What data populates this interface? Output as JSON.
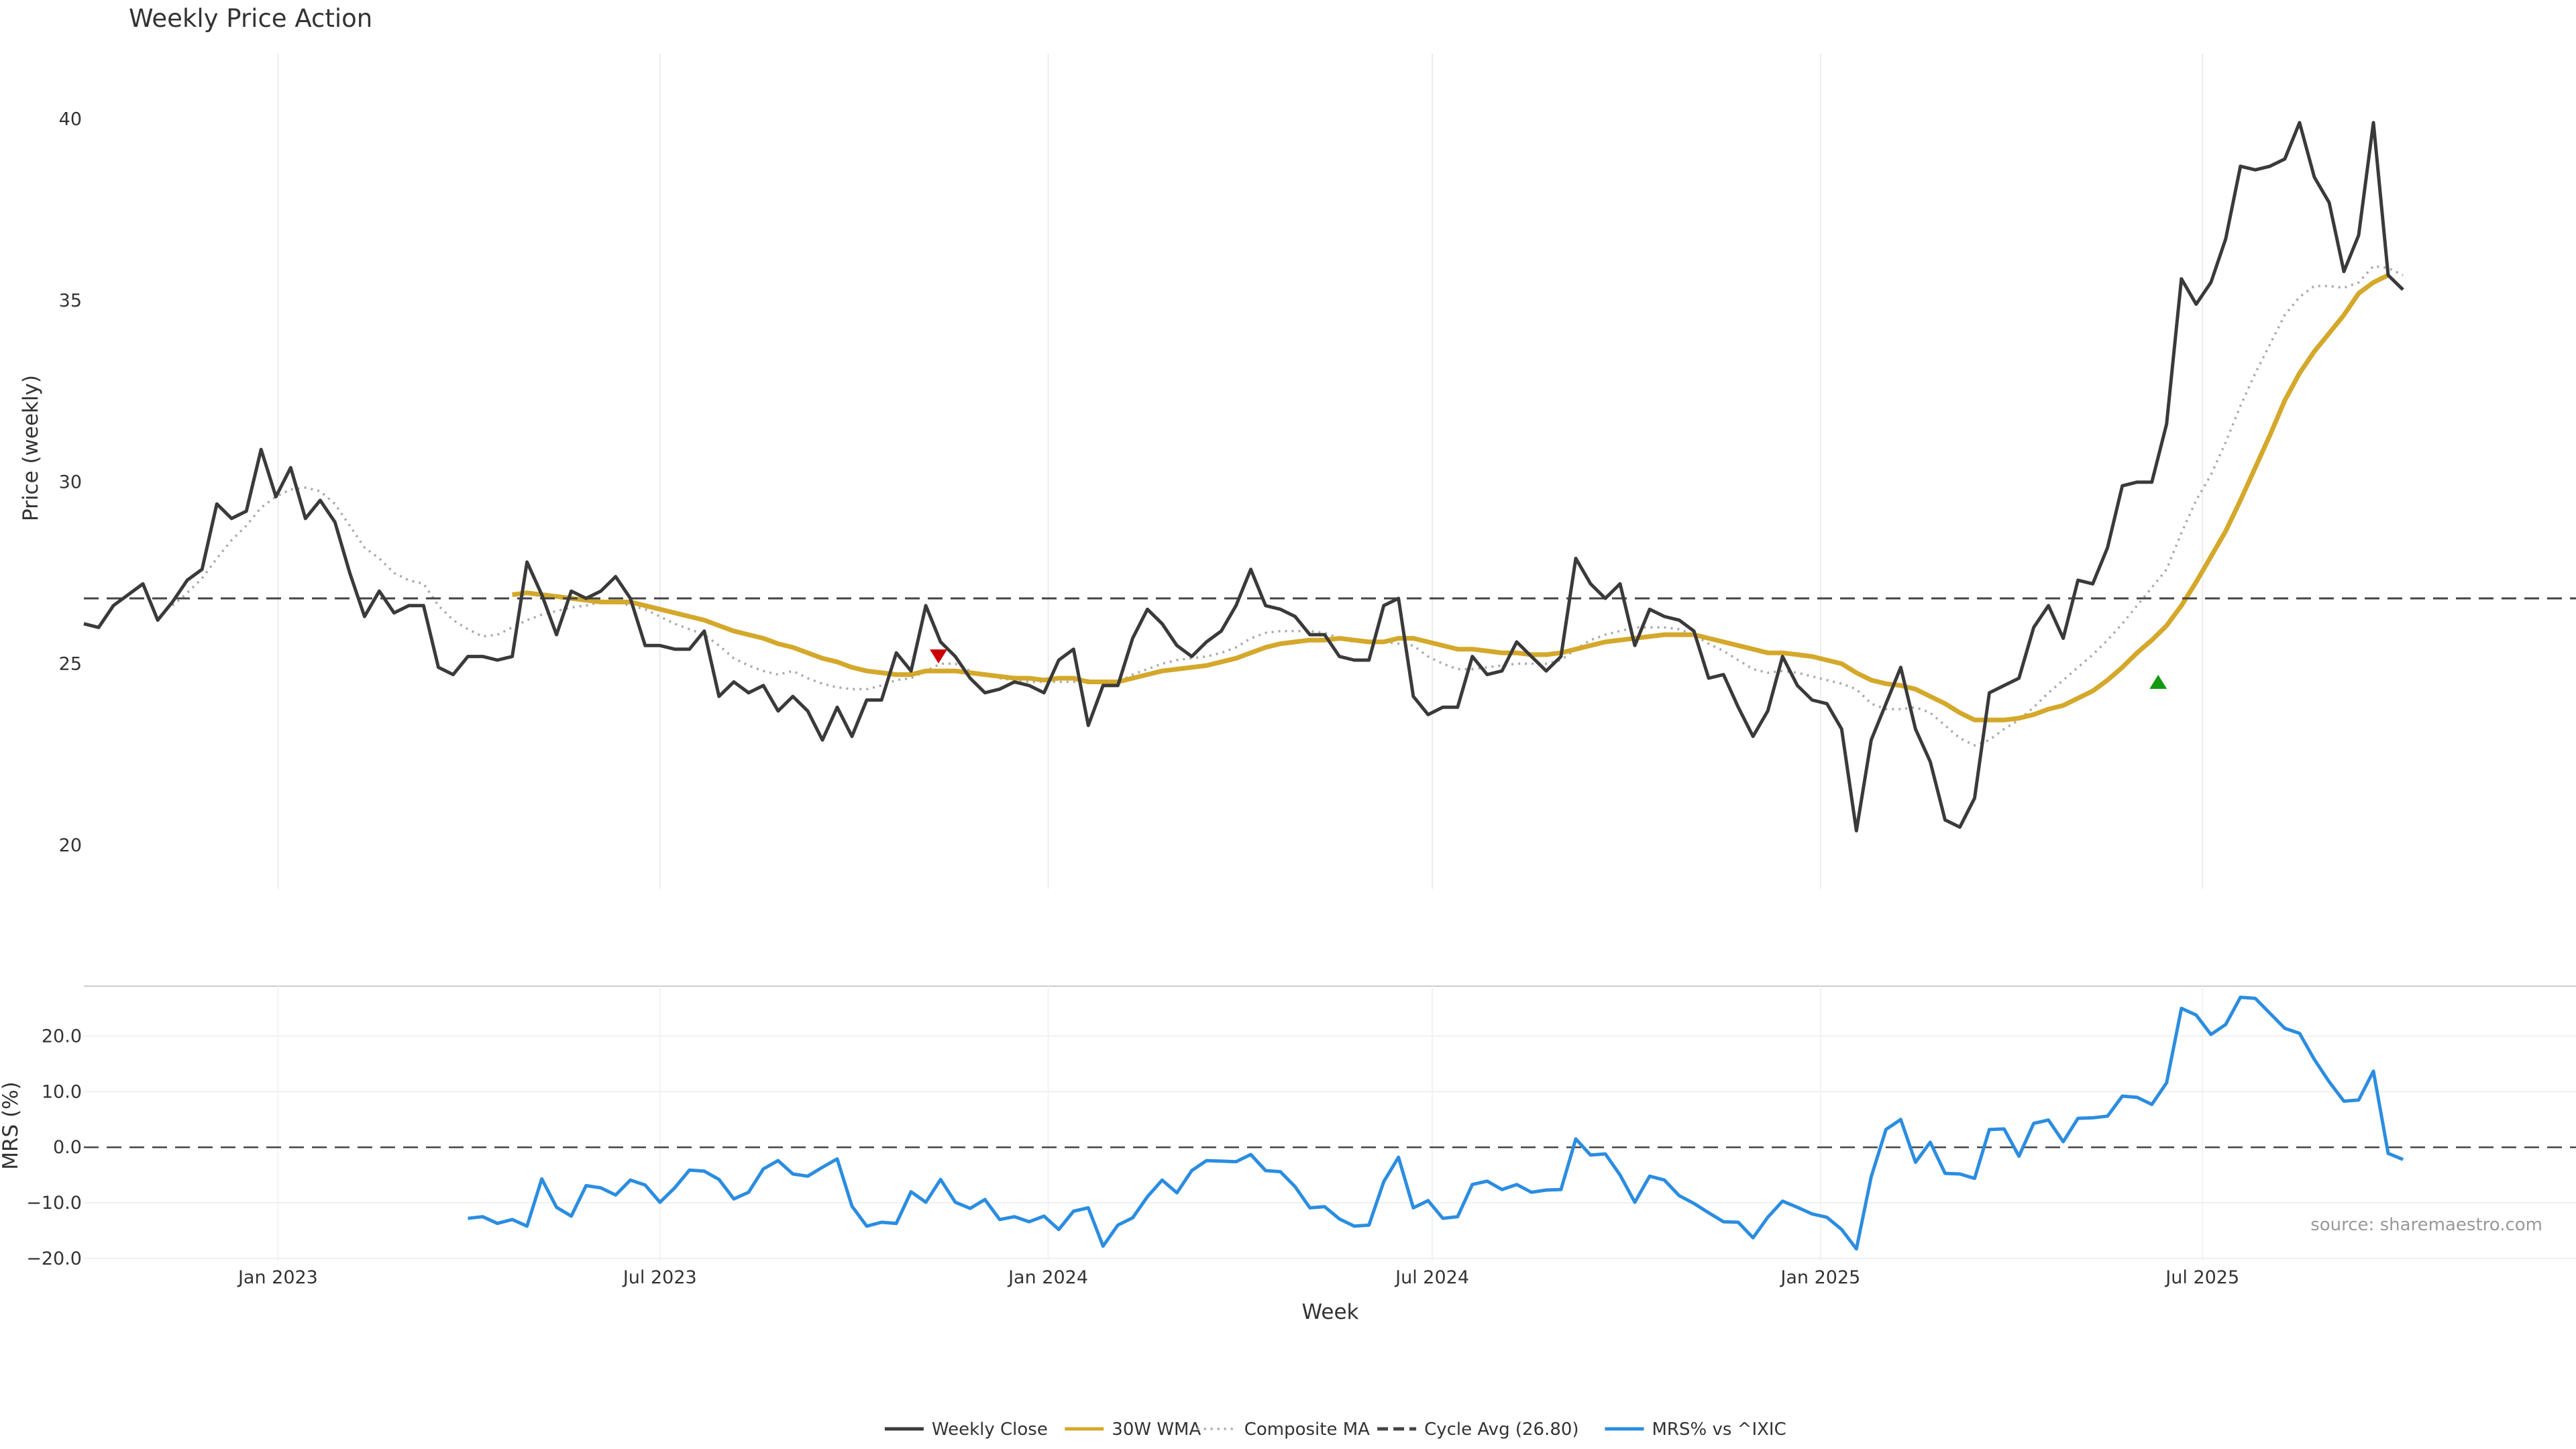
{
  "chart_data": [
    {
      "type": "line",
      "panel": "price",
      "title": "Weekly Price Action",
      "ylabel": "Price (weekly)",
      "ylim": [
        18.8,
        41.8
      ],
      "yticks": [
        "20",
        "25",
        "30",
        "35",
        "40"
      ],
      "ytick_values": [
        20,
        25,
        30,
        35,
        40
      ],
      "x_start": "2022-10-01",
      "x_step_weeks": 1,
      "xlim": [
        "2022-10-01",
        "2025-12-25"
      ],
      "grid": true,
      "series": [
        {
          "name": "Weekly Close",
          "color": "#3a3a3a",
          "style": "solid",
          "values": [
            26.1,
            26.0,
            26.6,
            26.9,
            27.2,
            26.2,
            26.7,
            27.3,
            27.6,
            29.4,
            29.0,
            29.2,
            30.9,
            29.6,
            30.4,
            29.0,
            29.5,
            28.9,
            27.5,
            26.3,
            27.0,
            26.4,
            26.6,
            26.6,
            24.9,
            24.7,
            25.2,
            25.2,
            25.1,
            25.2,
            27.8,
            26.9,
            25.8,
            27.0,
            26.8,
            27.0,
            27.4,
            26.8,
            25.5,
            25.5,
            25.4,
            25.4,
            25.9,
            24.1,
            24.5,
            24.2,
            24.4,
            23.7,
            24.1,
            23.7,
            22.9,
            23.8,
            23.0,
            24.0,
            24.0,
            25.3,
            24.8,
            26.6,
            25.6,
            25.2,
            24.6,
            24.2,
            24.3,
            24.5,
            24.4,
            24.2,
            25.1,
            25.4,
            23.3,
            24.4,
            24.4,
            25.7,
            26.5,
            26.1,
            25.5,
            25.2,
            25.6,
            25.9,
            26.6,
            27.6,
            26.6,
            26.5,
            26.3,
            25.8,
            25.8,
            25.2,
            25.1,
            25.1,
            26.6,
            26.8,
            24.1,
            23.6,
            23.8,
            23.8,
            25.2,
            24.7,
            24.8,
            25.6,
            25.2,
            24.8,
            25.2,
            27.9,
            27.2,
            26.8,
            27.2,
            25.5,
            26.5,
            26.3,
            26.2,
            25.9,
            24.6,
            24.7,
            23.8,
            23.0,
            23.7,
            25.2,
            24.4,
            24.0,
            23.9,
            23.2,
            20.4,
            22.9,
            23.9,
            24.9,
            23.2,
            22.3,
            20.7,
            20.5,
            21.3,
            24.2,
            24.4,
            24.6,
            26.0,
            26.6,
            25.7,
            27.3,
            27.2,
            28.2,
            29.9,
            30.0,
            30.0,
            31.6,
            35.6,
            34.9,
            35.5,
            36.7,
            38.7,
            38.6,
            38.7,
            38.9,
            39.9,
            38.4,
            37.7,
            35.8,
            36.8,
            39.9,
            35.7,
            35.3
          ]
        },
        {
          "name": "30W WMA",
          "color": "#d4a82b",
          "style": "solid",
          "values": [
            null,
            null,
            null,
            null,
            null,
            null,
            null,
            null,
            null,
            null,
            null,
            null,
            null,
            null,
            null,
            null,
            null,
            null,
            null,
            null,
            null,
            null,
            null,
            null,
            null,
            null,
            null,
            null,
            null,
            26.9,
            26.95,
            26.9,
            26.85,
            26.8,
            26.75,
            26.7,
            26.7,
            26.7,
            26.6,
            26.5,
            26.4,
            26.3,
            26.2,
            26.05,
            25.9,
            25.8,
            25.7,
            25.55,
            25.45,
            25.3,
            25.15,
            25.05,
            24.9,
            24.8,
            24.75,
            24.7,
            24.7,
            24.8,
            24.8,
            24.8,
            24.75,
            24.7,
            24.65,
            24.6,
            24.6,
            24.55,
            24.6,
            24.6,
            24.5,
            24.5,
            24.5,
            24.6,
            24.7,
            24.8,
            24.85,
            24.9,
            24.95,
            25.05,
            25.15,
            25.3,
            25.45,
            25.55,
            25.6,
            25.65,
            25.65,
            25.7,
            25.65,
            25.6,
            25.6,
            25.7,
            25.7,
            25.6,
            25.5,
            25.4,
            25.4,
            25.35,
            25.3,
            25.3,
            25.25,
            25.25,
            25.3,
            25.4,
            25.5,
            25.6,
            25.65,
            25.7,
            25.75,
            25.8,
            25.8,
            25.8,
            25.7,
            25.6,
            25.5,
            25.4,
            25.3,
            25.3,
            25.25,
            25.2,
            25.1,
            25.0,
            24.75,
            24.55,
            24.45,
            24.4,
            24.3,
            24.1,
            23.9,
            23.65,
            23.45,
            23.45,
            23.45,
            23.5,
            23.6,
            23.75,
            23.85,
            24.05,
            24.25,
            24.55,
            24.9,
            25.3,
            25.65,
            26.05,
            26.6,
            27.25,
            27.95,
            28.65,
            29.5,
            30.4,
            31.3,
            32.25,
            33.0,
            33.6,
            34.1,
            34.6,
            35.2,
            35.5,
            35.7
          ]
        },
        {
          "name": "Composite MA",
          "color": "#aaaaaa",
          "style": "dotted",
          "values": [
            null,
            null,
            null,
            null,
            null,
            null,
            26.6,
            26.95,
            27.35,
            27.9,
            28.4,
            28.8,
            29.3,
            29.6,
            29.8,
            29.85,
            29.75,
            29.4,
            28.8,
            28.2,
            27.9,
            27.5,
            27.3,
            27.2,
            26.6,
            26.2,
            25.95,
            25.75,
            25.8,
            26.0,
            26.2,
            26.35,
            26.45,
            26.55,
            26.6,
            26.7,
            26.7,
            26.6,
            26.5,
            26.3,
            26.1,
            25.95,
            25.8,
            25.5,
            25.15,
            24.95,
            24.8,
            24.7,
            24.8,
            24.6,
            24.45,
            24.35,
            24.3,
            24.3,
            24.4,
            24.55,
            24.6,
            24.8,
            25.0,
            25.0,
            24.8,
            24.7,
            24.6,
            24.55,
            24.5,
            24.5,
            24.5,
            24.5,
            24.55,
            24.5,
            24.5,
            24.7,
            24.85,
            25.0,
            25.1,
            25.15,
            25.2,
            25.3,
            25.45,
            25.7,
            25.85,
            25.9,
            25.9,
            25.9,
            25.85,
            25.7,
            25.6,
            25.6,
            25.6,
            25.55,
            25.5,
            25.2,
            25.0,
            24.85,
            24.85,
            24.9,
            24.95,
            25.0,
            25.0,
            25.0,
            25.1,
            25.4,
            25.65,
            25.8,
            25.9,
            26.0,
            26.0,
            26.0,
            25.95,
            25.8,
            25.55,
            25.35,
            25.1,
            24.85,
            24.75,
            24.8,
            24.75,
            24.65,
            24.55,
            24.45,
            24.3,
            23.9,
            23.75,
            23.75,
            23.8,
            23.65,
            23.3,
            22.95,
            22.75,
            22.9,
            23.2,
            23.45,
            23.8,
            24.2,
            24.55,
            24.9,
            25.25,
            25.65,
            26.1,
            26.6,
            27.1,
            27.6,
            28.6,
            29.5,
            30.2,
            31.1,
            32.1,
            33.0,
            33.8,
            34.6,
            35.1,
            35.4,
            35.4,
            35.35,
            35.5,
            35.95,
            35.9,
            35.7
          ]
        },
        {
          "name": "Cycle Avg (26.80)",
          "color": "#444444",
          "style": "dashed",
          "constant": 26.8
        }
      ],
      "markers": [
        {
          "type": "sell",
          "shape": "triangle-down",
          "color": "#cc0000",
          "x": "2023-11-10",
          "y": 25.2
        },
        {
          "type": "buy",
          "shape": "triangle-up",
          "color": "#119911",
          "x": "2025-06-10",
          "y": 24.5
        }
      ]
    },
    {
      "type": "line",
      "panel": "mrs",
      "ylabel": "MRS (%)",
      "xlabel": "Week",
      "ylim": [
        -20.5,
        29.0
      ],
      "yticks": [
        "20.0",
        "10.0",
        "0.0",
        "−10.0",
        "−20.0"
      ],
      "ytick_values": [
        20,
        10,
        0,
        -10,
        -20
      ],
      "xticks": [
        "Jan 2023",
        "Jul 2023",
        "Jan 2024",
        "Jul 2024",
        "Jan 2025",
        "Jul 2025"
      ],
      "xtick_dates": [
        "2023-01-01",
        "2023-07-01",
        "2024-01-01",
        "2024-07-01",
        "2025-01-01",
        "2025-07-01"
      ],
      "zero_line": 0,
      "series": [
        {
          "name": "MRS% vs ^IXIC",
          "color": "#2b8de0",
          "style": "solid",
          "values": [
            null,
            null,
            null,
            null,
            null,
            null,
            null,
            null,
            null,
            null,
            null,
            null,
            null,
            null,
            null,
            null,
            null,
            null,
            null,
            null,
            null,
            null,
            null,
            null,
            null,
            null,
            -12.8,
            -12.5,
            -13.7,
            -13.0,
            -14.2,
            -5.7,
            -10.8,
            -12.4,
            -6.9,
            -7.3,
            -8.6,
            -5.9,
            -6.8,
            -9.9,
            -7.3,
            -4.1,
            -4.3,
            -5.8,
            -9.3,
            -8.1,
            -3.9,
            -2.4,
            -4.8,
            -5.2,
            -3.6,
            -2.1,
            -10.6,
            -14.2,
            -13.5,
            -13.7,
            -8.0,
            -9.9,
            -5.8,
            -9.9,
            -11.0,
            -9.4,
            -13.0,
            -12.5,
            -13.4,
            -12.4,
            -14.8,
            -11.5,
            -10.9,
            -17.8,
            -14.0,
            -12.7,
            -8.9,
            -5.9,
            -8.2,
            -4.2,
            -2.4,
            -2.5,
            -2.6,
            -1.3,
            -4.2,
            -4.4,
            -7.1,
            -10.9,
            -10.7,
            -12.9,
            -14.2,
            -14.0,
            -6.2,
            -1.8,
            -10.9,
            -9.6,
            -12.8,
            -12.5,
            -6.7,
            -6.1,
            -7.6,
            -6.7,
            -8.1,
            -7.7,
            -7.6,
            1.5,
            -1.4,
            -1.2,
            -5.0,
            -9.9,
            -5.2,
            -5.9,
            -8.7,
            -10.1,
            -11.8,
            -13.4,
            -13.5,
            -16.3,
            -12.6,
            -9.7,
            -10.8,
            -12.0,
            -12.6,
            -14.8,
            -18.3,
            -5.3,
            3.2,
            5.0,
            -2.7,
            0.9,
            -4.7,
            -4.8,
            -5.6,
            3.2,
            3.3,
            -1.6,
            4.3,
            4.9,
            1.0,
            5.2,
            5.3,
            5.6,
            9.2,
            9.0,
            7.7,
            11.6,
            25.0,
            23.8,
            20.3,
            22.1,
            27.0,
            26.8,
            24.1,
            21.4,
            20.5,
            15.8,
            11.8,
            8.3,
            8.5,
            13.7,
            -1.1,
            -2.2
          ]
        }
      ]
    }
  ],
  "legend": {
    "items": [
      {
        "label": "Weekly Close",
        "color": "#3a3a3a",
        "style": "solid"
      },
      {
        "label": "30W WMA",
        "color": "#d4a82b",
        "style": "solid"
      },
      {
        "label": "Composite MA",
        "color": "#aaaaaa",
        "style": "dotted"
      },
      {
        "label": "Cycle Avg (26.80)",
        "color": "#444444",
        "style": "dashed"
      },
      {
        "label": "MRS% vs ^IXIC",
        "color": "#2b8de0",
        "style": "solid"
      }
    ],
    "placement": "bottom-center"
  },
  "source_note": "source: sharemaestro.com"
}
